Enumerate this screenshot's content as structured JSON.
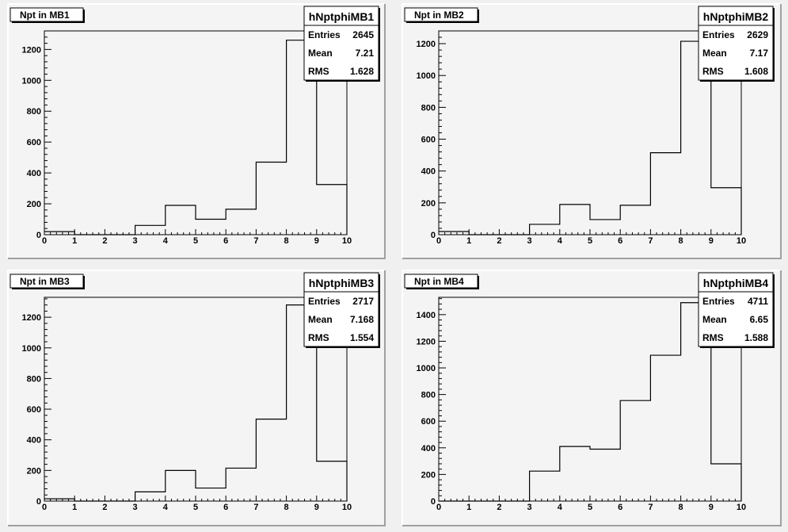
{
  "chart_data": [
    {
      "type": "bar",
      "title": "Npt in MB1",
      "stats": {
        "name": "hNptphiMB1",
        "rows": [
          {
            "label": "Entries",
            "value": "2645"
          },
          {
            "label": "Mean",
            "value": "7.21"
          },
          {
            "label": "RMS",
            "value": "1.628"
          }
        ]
      },
      "xlim": [
        0,
        10
      ],
      "ylim": [
        0,
        1320
      ],
      "xticks": [
        "0",
        "1",
        "2",
        "3",
        "4",
        "5",
        "6",
        "7",
        "8",
        "9",
        "10"
      ],
      "yticks": [
        0,
        200,
        400,
        600,
        800,
        1000,
        1200
      ],
      "bin_edges": [
        0,
        1,
        2,
        3,
        4,
        5,
        6,
        7,
        8,
        9,
        10
      ],
      "values": [
        20,
        0,
        0,
        60,
        190,
        100,
        165,
        470,
        1260,
        325
      ]
    },
    {
      "type": "bar",
      "title": "Npt in MB2",
      "stats": {
        "name": "hNptphiMB2",
        "rows": [
          {
            "label": "Entries",
            "value": "2629"
          },
          {
            "label": "Mean",
            "value": "7.17"
          },
          {
            "label": "RMS",
            "value": "1.608"
          }
        ]
      },
      "xlim": [
        0,
        10
      ],
      "ylim": [
        0,
        1280
      ],
      "xticks": [
        "0",
        "1",
        "2",
        "3",
        "4",
        "5",
        "6",
        "7",
        "8",
        "9",
        "10"
      ],
      "yticks": [
        0,
        200,
        400,
        600,
        800,
        1000,
        1200
      ],
      "bin_edges": [
        0,
        1,
        2,
        3,
        4,
        5,
        6,
        7,
        8,
        9,
        10
      ],
      "values": [
        20,
        0,
        0,
        65,
        190,
        95,
        185,
        515,
        1215,
        295
      ]
    },
    {
      "type": "bar",
      "title": "Npt in MB3",
      "stats": {
        "name": "hNptphiMB3",
        "rows": [
          {
            "label": "Entries",
            "value": "2717"
          },
          {
            "label": "Mean",
            "value": "7.168"
          },
          {
            "label": "RMS",
            "value": "1.554"
          }
        ]
      },
      "xlim": [
        0,
        10
      ],
      "ylim": [
        0,
        1330
      ],
      "xticks": [
        "0",
        "1",
        "2",
        "3",
        "4",
        "5",
        "6",
        "7",
        "8",
        "9",
        "10"
      ],
      "yticks": [
        0,
        200,
        400,
        600,
        800,
        1000,
        1200
      ],
      "bin_edges": [
        0,
        1,
        2,
        3,
        4,
        5,
        6,
        7,
        8,
        9,
        10
      ],
      "values": [
        15,
        0,
        0,
        60,
        200,
        85,
        215,
        535,
        1280,
        260
      ]
    },
    {
      "type": "bar",
      "title": "Npt in MB4",
      "stats": {
        "name": "hNptphiMB4",
        "rows": [
          {
            "label": "Entries",
            "value": "4711"
          },
          {
            "label": "Mean",
            "value": "6.65"
          },
          {
            "label": "RMS",
            "value": "1.588"
          }
        ]
      },
      "xlim": [
        0,
        10
      ],
      "ylim": [
        0,
        1530
      ],
      "xticks": [
        "0",
        "1",
        "2",
        "3",
        "4",
        "5",
        "6",
        "7",
        "8",
        "9",
        "10"
      ],
      "yticks": [
        0,
        200,
        400,
        600,
        800,
        1000,
        1200,
        1400
      ],
      "bin_edges": [
        0,
        1,
        2,
        3,
        4,
        5,
        6,
        7,
        8,
        9,
        10
      ],
      "values": [
        0,
        0,
        0,
        225,
        410,
        390,
        755,
        1095,
        1490,
        280
      ]
    }
  ],
  "colors": {
    "background": "#f0f0f0",
    "pad": "#f4f4f4",
    "frame": "#000000",
    "bevel_light": "#ffffff",
    "bevel_dark": "#a0a0a0"
  }
}
